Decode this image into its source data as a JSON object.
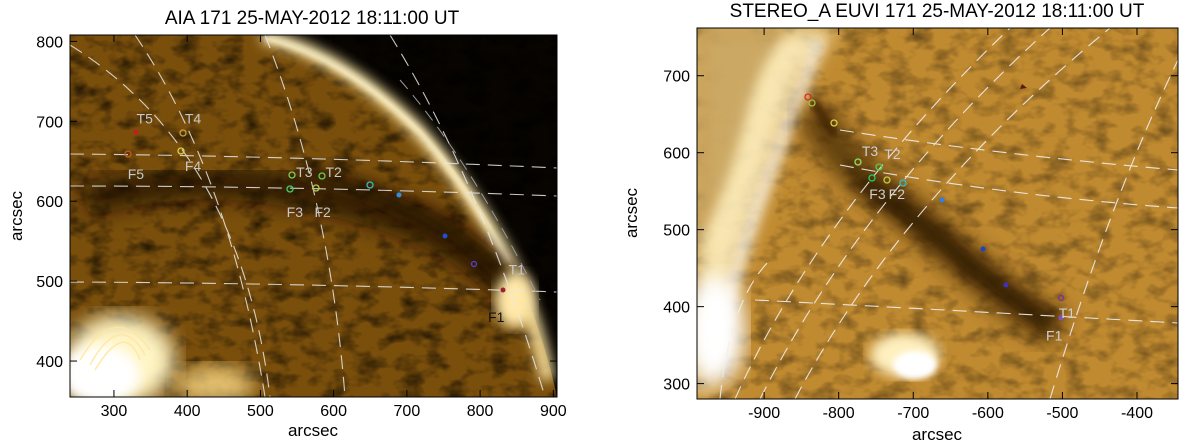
{
  "panels": [
    {
      "title": "AIA 171 25-MAY-2012 18:11:00 UT",
      "xlabel": "arcsec",
      "ylabel": "arcsec",
      "x_ticks": [
        300,
        400,
        500,
        600,
        700,
        800,
        900
      ],
      "y_ticks": [
        400,
        500,
        600,
        700,
        800
      ],
      "xlim": [
        240,
        905
      ],
      "ylim": [
        355,
        808
      ],
      "labels": [
        {
          "text": "T5",
          "x": 342,
          "y": 697,
          "color": "#c8c8c8"
        },
        {
          "text": "T4",
          "x": 408,
          "y": 697,
          "color": "#c8c8c8"
        },
        {
          "text": "F5",
          "x": 330,
          "y": 628,
          "color": "#c8c8c8"
        },
        {
          "text": "F4",
          "x": 408,
          "y": 638,
          "color": "#c8c8c8"
        },
        {
          "text": "T3",
          "x": 560,
          "y": 630,
          "color": "#c8c8c8"
        },
        {
          "text": "T2",
          "x": 600,
          "y": 630,
          "color": "#c8c8c8"
        },
        {
          "text": "F3",
          "x": 547,
          "y": 580,
          "color": "#c8c8c8"
        },
        {
          "text": "F2",
          "x": 585,
          "y": 580,
          "color": "#c8c8c8"
        },
        {
          "text": "T1",
          "x": 850,
          "y": 508,
          "color": "#c8c8c8"
        },
        {
          "text": "F1",
          "x": 822,
          "y": 449,
          "color": "#111111"
        }
      ]
    },
    {
      "title": "STEREO_A EUVI 171 25-MAY-2012 18:11:00 UT",
      "xlabel": "arcsec",
      "ylabel": "arcsec",
      "x_ticks": [
        -900,
        -800,
        -700,
        -600,
        -500,
        -400
      ],
      "y_ticks": [
        300,
        400,
        500,
        600,
        700
      ],
      "xlim": [
        -990,
        -345
      ],
      "ylim": [
        280,
        762
      ],
      "labels": [
        {
          "text": "T3",
          "x": -758,
          "y": 596,
          "color": "#d0d0d0"
        },
        {
          "text": "T2",
          "x": -728,
          "y": 592,
          "color": "#d0d0d0"
        },
        {
          "text": "F3",
          "x": -748,
          "y": 540,
          "color": "#d0d0d0"
        },
        {
          "text": "F2",
          "x": -722,
          "y": 540,
          "color": "#d0d0d0"
        },
        {
          "text": "T1",
          "x": -494,
          "y": 385,
          "color": "#d0d0d0"
        },
        {
          "text": "F1",
          "x": -511,
          "y": 356,
          "color": "#d0d0d0"
        }
      ]
    }
  ]
}
